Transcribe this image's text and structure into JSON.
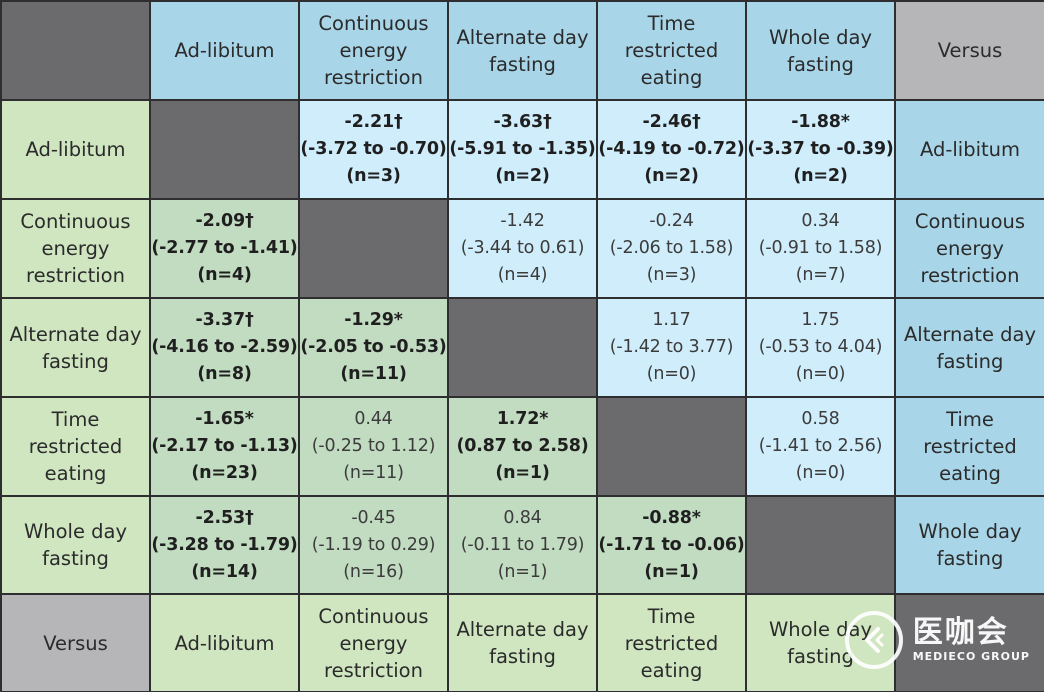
{
  "chart_data": {
    "type": "table",
    "corner_label": "",
    "versus_label": "Versus",
    "interventions": [
      "Ad-libitum",
      "Continuous energy restriction",
      "Alternate day fasting",
      "Time restricted eating",
      "Whole day fasting"
    ],
    "cells": [
      [
        null,
        {
          "est": "-2.21†",
          "ci": "(-3.72 to -0.70)",
          "n": "(n=3)",
          "significant": true
        },
        {
          "est": "-3.63†",
          "ci": "(-5.91 to -1.35)",
          "n": "(n=2)",
          "significant": true
        },
        {
          "est": "-2.46†",
          "ci": "(-4.19 to -0.72)",
          "n": "(n=2)",
          "significant": true
        },
        {
          "est": "-1.88*",
          "ci": "(-3.37 to -0.39)",
          "n": "(n=2)",
          "significant": true
        }
      ],
      [
        {
          "est": "-2.09†",
          "ci": "(-2.77 to -1.41)",
          "n": "(n=4)",
          "significant": true
        },
        null,
        {
          "est": "-1.42",
          "ci": "(-3.44 to 0.61)",
          "n": "(n=4)",
          "significant": false
        },
        {
          "est": "-0.24",
          "ci": "(-2.06 to 1.58)",
          "n": "(n=3)",
          "significant": false
        },
        {
          "est": "0.34",
          "ci": "(-0.91 to 1.58)",
          "n": "(n=7)",
          "significant": false
        }
      ],
      [
        {
          "est": "-3.37†",
          "ci": "(-4.16 to -2.59)",
          "n": "(n=8)",
          "significant": true
        },
        {
          "est": "-1.29*",
          "ci": "(-2.05 to -0.53)",
          "n": "(n=11)",
          "significant": true
        },
        null,
        {
          "est": "1.17",
          "ci": "(-1.42 to 3.77)",
          "n": "(n=0)",
          "significant": false
        },
        {
          "est": "1.75",
          "ci": "(-0.53 to 4.04)",
          "n": "(n=0)",
          "significant": false
        }
      ],
      [
        {
          "est": "-1.65*",
          "ci": "(-2.17 to -1.13)",
          "n": "(n=23)",
          "significant": true
        },
        {
          "est": "0.44",
          "ci": "(-0.25 to 1.12)",
          "n": "(n=11)",
          "significant": false
        },
        {
          "est": "1.72*",
          "ci": "(0.87 to 2.58)",
          "n": "(n=1)",
          "significant": true
        },
        null,
        {
          "est": "0.58",
          "ci": "(-1.41 to 2.56)",
          "n": "(n=0)",
          "significant": false
        }
      ],
      [
        {
          "est": "-2.53†",
          "ci": "(-3.28 to -1.79)",
          "n": "(n=14)",
          "significant": true
        },
        {
          "est": "-0.45",
          "ci": "(-1.19 to 0.29)",
          "n": "(n=16)",
          "significant": false
        },
        {
          "est": "0.84",
          "ci": "(-0.11 to 1.79)",
          "n": "(n=1)",
          "significant": false
        },
        {
          "est": "-0.88*",
          "ci": "(-1.71 to -0.06)",
          "n": "(n=1)",
          "significant": true
        },
        null
      ]
    ],
    "colors": {
      "header_top": "#a9d5e8",
      "header_left": "#cfe6c1",
      "upper_cell": "#cfedfb",
      "lower_cell": "#c2dcc2",
      "diagonal": "#6b6b6e",
      "versus": "#b6b6b9"
    }
  },
  "watermark": {
    "name_cn": "医咖会",
    "name_en": "MEDIECO GROUP"
  }
}
